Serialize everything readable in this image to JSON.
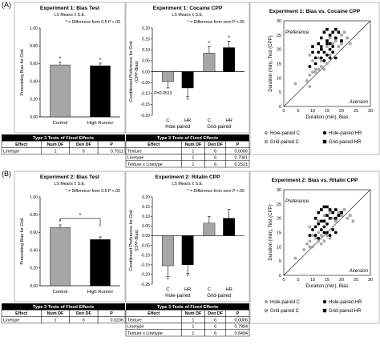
{
  "chart_data": [
    {
      "panel": "A",
      "type": "bar",
      "title": "Experiment 1: Bias Test",
      "subtitle": "LS Means ± S.E.",
      "legend_note": "* = Difference from 0.5 P <.05",
      "ylabel": "Preexisting Bias for Grid",
      "ylim": [
        0,
        1
      ],
      "yticks": [
        "0.00",
        "0.20",
        "0.40",
        "0.60",
        "0.80",
        "1.00"
      ],
      "categories": [
        "Control",
        "High Runner"
      ],
      "values": [
        0.585,
        0.575
      ],
      "errors": [
        0.03,
        0.03
      ],
      "colors": [
        "#a6a6a6",
        "#000000"
      ],
      "stars": [
        "*",
        "*"
      ],
      "table": {
        "title": "Type 3 Tests of Fixed Effects",
        "headers": [
          "Effect",
          "Num DF",
          "Den DF",
          "P"
        ],
        "rows": [
          [
            "Linetype",
            "1",
            "6",
            "0.7011"
          ]
        ]
      }
    },
    {
      "panel": "A",
      "type": "bar",
      "title": "Experiment 1: Cocaine CPP",
      "subtitle": "LS Means ± S.E.",
      "legend_note": "* = Difference from zero P <.05",
      "ylabel": "Conditioned Preference for Grid (CPP-Bias)",
      "ylim": [
        -0.2,
        0.2
      ],
      "yticks": [
        "-0.20",
        "-0.15",
        "-0.10",
        "-0.05",
        "0.00",
        "0.05",
        "0.10",
        "0.15",
        "0.20"
      ],
      "categories": [
        "C",
        "HR",
        "C",
        "HR"
      ],
      "groups": [
        "Hole-paired",
        "Grid-paired"
      ],
      "values": [
        -0.045,
        -0.075,
        0.085,
        0.11
      ],
      "errors": [
        0.03,
        0.04,
        0.03,
        0.03
      ],
      "colors": [
        "#a6a6a6",
        "#000000",
        "#a6a6a6",
        "#000000"
      ],
      "stars": [
        "",
        "*",
        "*",
        "*"
      ],
      "annotation": "P=0.0513",
      "table": {
        "title": "Type 3 Tests of Fixed Effects",
        "headers": [
          "Effect",
          "Num DF",
          "Den DF",
          "P"
        ],
        "rows": [
          [
            "Texture",
            "1",
            "6",
            "0.0006"
          ],
          [
            "Linetype",
            "1",
            "6",
            "0.7081"
          ],
          [
            "Texture x Linetype",
            "1",
            "6",
            "0.2521"
          ]
        ]
      }
    },
    {
      "panel": "A",
      "type": "scatter",
      "title": "Experiment 1: Bias vs. Cocaine CPP",
      "xlabel": "Duration (min), Bias",
      "ylabel": "Duration (min), Test (CPP)",
      "xlim": [
        0,
        30
      ],
      "ylim": [
        0,
        30
      ],
      "ticks": [
        "0",
        "5",
        "10",
        "15",
        "20",
        "25",
        "30"
      ],
      "region_labels": [
        "Preference",
        "Aversion"
      ],
      "legend": [
        "Hole-paired C",
        "Hole-paired HR",
        "Grid-paired C",
        "Grid-paired HR"
      ],
      "series": [
        {
          "name": "Hole-paired C",
          "marker": "circle",
          "color": "#a6a6a6",
          "points": [
            [
              4,
              8
            ],
            [
              8,
              9
            ],
            [
              9,
              11
            ],
            [
              10,
              12
            ],
            [
              11,
              13
            ],
            [
              12,
              13
            ],
            [
              10,
              16
            ],
            [
              13,
              14
            ],
            [
              14,
              13
            ],
            [
              15,
              15
            ],
            [
              12,
              17
            ],
            [
              16,
              18
            ],
            [
              11,
              12
            ],
            [
              9,
              7
            ],
            [
              13,
              16
            ]
          ]
        },
        {
          "name": "Grid-paired C",
          "marker": "square",
          "color": "#a6a6a6",
          "points": [
            [
              9,
              18
            ],
            [
              13,
              20
            ],
            [
              16,
              24
            ],
            [
              18,
              23
            ],
            [
              20,
              22
            ],
            [
              21,
              26
            ],
            [
              22,
              24
            ],
            [
              19,
              21
            ],
            [
              17,
              22
            ],
            [
              23,
              22
            ],
            [
              15,
              21
            ],
            [
              20,
              25
            ]
          ]
        },
        {
          "name": "Hole-paired HR",
          "marker": "circle",
          "color": "#000000",
          "points": [
            [
              9,
              14
            ],
            [
              11,
              17
            ],
            [
              12,
              19
            ],
            [
              13,
              21
            ],
            [
              14,
              19
            ],
            [
              15,
              18
            ],
            [
              16,
              17
            ],
            [
              17,
              19
            ],
            [
              15,
              22
            ],
            [
              14,
              16
            ],
            [
              18,
              17
            ],
            [
              16,
              20
            ],
            [
              11,
              15
            ],
            [
              13,
              17
            ],
            [
              17,
              21
            ],
            [
              10,
              19
            ]
          ]
        },
        {
          "name": "Grid-paired HR",
          "marker": "square",
          "color": "#000000",
          "points": [
            [
              10,
              21
            ],
            [
              12,
              22
            ],
            [
              13,
              24
            ],
            [
              14,
              26
            ],
            [
              15,
              23
            ],
            [
              16,
              25
            ],
            [
              17,
              26
            ],
            [
              18,
              24
            ],
            [
              19,
              26
            ],
            [
              16,
              22
            ],
            [
              15,
              27
            ],
            [
              18,
              27
            ],
            [
              20,
              23
            ],
            [
              13,
              20
            ]
          ]
        }
      ]
    },
    {
      "panel": "B",
      "type": "bar",
      "title": "Experiment 2: Bias Test",
      "subtitle": "LS Means ± S.E.",
      "legend_note": "* = Difference from 0.5 P <.05",
      "ylabel": "Preexisting Bias for Grid",
      "ylim": [
        0,
        1
      ],
      "yticks": [
        "0.00",
        "0.20",
        "0.40",
        "0.60",
        "0.80",
        "1.00"
      ],
      "categories": [
        "Control",
        "High Runner"
      ],
      "values": [
        0.655,
        0.52
      ],
      "errors": [
        0.03,
        0.03
      ],
      "colors": [
        "#a6a6a6",
        "#000000"
      ],
      "stars": [
        "*",
        ""
      ],
      "bracket_star": "*",
      "table": {
        "title": "Type 3 Tests of Fixed Effects",
        "headers": [
          "Effect",
          "Num DF",
          "Den DF",
          "P"
        ],
        "rows": [
          [
            "Linetype",
            "1",
            "6",
            "0.0236"
          ]
        ]
      }
    },
    {
      "panel": "B",
      "type": "bar",
      "title": "Experiment 2: Ritalin CPP",
      "subtitle": "LS Means ± S.E.",
      "legend_note": "* = Difference from zero P <.05",
      "ylabel": "Conditioned Preference for Grid (CPP-Bias)",
      "ylim": [
        -0.25,
        0.2
      ],
      "yticks": [
        "-0.25",
        "-0.20",
        "-0.15",
        "-0.10",
        "-0.05",
        "0.00",
        "0.05",
        "0.10",
        "0.15",
        "0.20"
      ],
      "categories": [
        "C",
        "HR",
        "C",
        "HR"
      ],
      "groups": [
        "Hole-paired",
        "Grid-paired"
      ],
      "values": [
        -0.155,
        -0.15,
        0.065,
        0.09
      ],
      "errors": [
        0.055,
        0.045,
        0.035,
        0.045
      ],
      "colors": [
        "#a6a6a6",
        "#000000",
        "#a6a6a6",
        "#000000"
      ],
      "stars": [
        "*",
        "*",
        "",
        ""
      ],
      "table": {
        "title": "Type 3 Tests of Fixed Effects",
        "headers": [
          "Effect",
          "Num DF",
          "Den DF",
          "P"
        ],
        "rows": [
          [
            "Texture",
            "1",
            "6",
            "0.0006"
          ],
          [
            "Linetype",
            "1",
            "6",
            "0.7984"
          ],
          [
            "Texture x Linetype",
            "1",
            "6",
            "0.8494"
          ]
        ]
      }
    },
    {
      "panel": "B",
      "type": "scatter",
      "title": "Experiment 2: Bias vs. Ritalin CPP",
      "xlabel": "Duration (min), Bias",
      "ylabel": "Duration (min), Test (CPP)",
      "xlim": [
        0,
        30
      ],
      "ylim": [
        0,
        30
      ],
      "ticks": [
        "0",
        "5",
        "10",
        "15",
        "20",
        "25",
        "30"
      ],
      "region_labels": [
        "Preference",
        "Aversion"
      ],
      "legend": [
        "Hole-paired C",
        "Hole-paired HR",
        "Grid-paired C",
        "Grid-paired HR"
      ],
      "series": [
        {
          "name": "Hole-paired C",
          "marker": "circle",
          "color": "#a6a6a6",
          "points": [
            [
              4,
              6
            ],
            [
              7,
              9
            ],
            [
              8,
              11
            ],
            [
              9,
              12
            ],
            [
              10,
              10
            ],
            [
              11,
              13
            ],
            [
              12,
              12
            ],
            [
              13,
              14
            ],
            [
              14,
              12
            ],
            [
              15,
              14
            ],
            [
              10,
              14
            ],
            [
              12,
              15
            ],
            [
              16,
              13
            ],
            [
              13,
              11
            ],
            [
              9,
              10
            ]
          ]
        },
        {
          "name": "Grid-paired C",
          "marker": "square",
          "color": "#a6a6a6",
          "points": [
            [
              9,
              17
            ],
            [
              12,
              19
            ],
            [
              14,
              21
            ],
            [
              17,
              20
            ],
            [
              19,
              22
            ],
            [
              20,
              21
            ],
            [
              22,
              20
            ],
            [
              21,
              23
            ],
            [
              24,
              19
            ],
            [
              18,
              19
            ],
            [
              16,
              22
            ],
            [
              23,
              21
            ]
          ]
        },
        {
          "name": "Hole-paired HR",
          "marker": "circle",
          "color": "#000000",
          "points": [
            [
              9,
              14
            ],
            [
              10,
              16
            ],
            [
              11,
              17
            ],
            [
              12,
              18
            ],
            [
              13,
              16
            ],
            [
              14,
              17
            ],
            [
              15,
              15
            ],
            [
              16,
              14
            ],
            [
              17,
              16
            ],
            [
              13,
              19
            ],
            [
              11,
              14
            ],
            [
              15,
              18
            ],
            [
              18,
              15
            ],
            [
              12,
              13
            ],
            [
              14,
              15
            ]
          ]
        },
        {
          "name": "Grid-paired HR",
          "marker": "square",
          "color": "#000000",
          "points": [
            [
              11,
              20
            ],
            [
              12,
              22
            ],
            [
              13,
              23
            ],
            [
              14,
              24
            ],
            [
              15,
              21
            ],
            [
              16,
              23
            ],
            [
              17,
              22
            ],
            [
              18,
              20
            ],
            [
              19,
              21
            ],
            [
              20,
              22
            ],
            [
              16,
              20
            ],
            [
              14,
              19
            ],
            [
              18,
              23
            ],
            [
              15,
              24
            ]
          ]
        }
      ]
    }
  ],
  "panel_labels": [
    "(A)",
    "(B)"
  ]
}
